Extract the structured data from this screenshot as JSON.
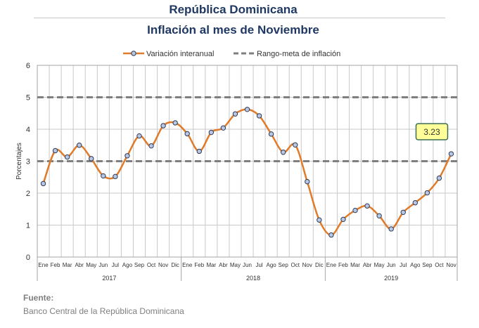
{
  "header": {
    "title": "República Dominicana",
    "subtitle": "Inflación al mes de Noviembre"
  },
  "source": {
    "heading": "Fuente:",
    "text": "Banco Central de la República Dominicana"
  },
  "chart_data": {
    "type": "line",
    "ylabel": "Porcentajes",
    "ylim": [
      0,
      6
    ],
    "yticks": [
      0,
      1,
      2,
      3,
      4,
      5,
      6
    ],
    "grid": true,
    "legend_position": "top",
    "month_labels": [
      "Ene",
      "Feb",
      "Mar",
      "Abr",
      "May",
      "Jun",
      "Jul",
      "Ago",
      "Sep",
      "Oct",
      "Nov",
      "Dic",
      "Ene",
      "Feb",
      "Mar",
      "Abr",
      "May",
      "Jun",
      "Jul",
      "Ago",
      "Sep",
      "Oct",
      "Nov",
      "Dic",
      "Ene",
      "Feb",
      "Mar",
      "Abr",
      "May",
      "Jun",
      "Jul",
      "Ago",
      "Sep",
      "Oct",
      "Nov"
    ],
    "year_groups": [
      {
        "label": "2017",
        "count": 12
      },
      {
        "label": "2018",
        "count": 12
      },
      {
        "label": "2019",
        "count": 11
      }
    ],
    "series": [
      {
        "name": "Variación interanual",
        "color": "#e07b2a",
        "marker_fill": "#b8c7e6",
        "values": [
          2.3,
          3.33,
          3.13,
          3.5,
          3.08,
          2.54,
          2.52,
          3.17,
          3.79,
          3.48,
          4.11,
          4.2,
          3.86,
          3.31,
          3.9,
          4.04,
          4.48,
          4.62,
          4.42,
          3.85,
          3.28,
          3.51,
          2.36,
          1.16,
          0.69,
          1.18,
          1.46,
          1.6,
          1.29,
          0.88,
          1.4,
          1.7,
          2.01,
          2.47,
          3.23
        ]
      },
      {
        "name": "Rango-meta de inflación",
        "color": "#7f7f7f",
        "dashed": true,
        "bounds": [
          3,
          5
        ]
      }
    ],
    "annotation": {
      "text": "3.23",
      "fill": "#ffff99",
      "border": "#3b6e55"
    }
  }
}
